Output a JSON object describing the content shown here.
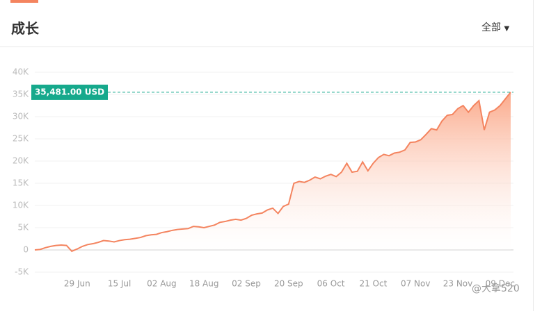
{
  "header": {
    "title": "成长",
    "filter": "全部"
  },
  "chart_data": {
    "type": "area",
    "color": "#f4845f",
    "categories": [
      null,
      null,
      null,
      null,
      null,
      null,
      null,
      null,
      "29 Jun",
      null,
      null,
      null,
      null,
      null,
      null,
      null,
      "15 Jul",
      null,
      null,
      null,
      null,
      null,
      null,
      null,
      "02 Aug",
      null,
      null,
      null,
      null,
      null,
      null,
      null,
      "18 Aug",
      null,
      null,
      null,
      null,
      null,
      null,
      null,
      "02 Sep",
      null,
      null,
      null,
      null,
      null,
      null,
      null,
      "20 Sep",
      null,
      null,
      null,
      null,
      null,
      null,
      null,
      "06 Oct",
      null,
      null,
      null,
      null,
      null,
      null,
      null,
      "21 Oct",
      null,
      null,
      null,
      null,
      null,
      null,
      null,
      "07 Nov",
      null,
      null,
      null,
      null,
      null,
      null,
      null,
      "23 Nov",
      null,
      null,
      null,
      null,
      null,
      null,
      null,
      "09 Dec",
      null,
      null
    ],
    "values": [
      0,
      100,
      500,
      800,
      1000,
      1100,
      1000,
      -300,
      200,
      800,
      1200,
      1400,
      1700,
      2100,
      2000,
      1800,
      2100,
      2300,
      2400,
      2600,
      2800,
      3200,
      3400,
      3500,
      3900,
      4100,
      4400,
      4600,
      4700,
      4800,
      5300,
      5200,
      5000,
      5300,
      5600,
      6200,
      6400,
      6700,
      6900,
      6700,
      7100,
      7800,
      8100,
      8300,
      9000,
      9400,
      8200,
      9800,
      10300,
      15000,
      15400,
      15200,
      15700,
      16400,
      16000,
      16600,
      17000,
      16500,
      17500,
      19500,
      17500,
      17700,
      19800,
      17800,
      19500,
      20800,
      21500,
      21200,
      21800,
      22000,
      22500,
      24200,
      24300,
      24800,
      26000,
      27300,
      27000,
      29000,
      30300,
      30500,
      31800,
      32500,
      31000,
      32500,
      33600,
      27000,
      31000,
      31500,
      32500,
      34000,
      35481
    ],
    "ylim": [
      -5000,
      40000
    ],
    "yticks": [
      {
        "value": -5000,
        "label": "-5K"
      },
      0,
      {
        "value": 5000,
        "label": "5K"
      },
      {
        "value": 10000,
        "label": "10K"
      },
      {
        "value": 15000,
        "label": "15K"
      },
      {
        "value": 20000,
        "label": "20K"
      },
      {
        "value": 25000,
        "label": "25K"
      },
      {
        "value": 30000,
        "label": "30K"
      },
      {
        "value": 35000,
        "label": "35K"
      },
      {
        "value": 40000,
        "label": "40K"
      }
    ],
    "grid": true,
    "marker": {
      "value": 35481,
      "label": "35,481.00 USD",
      "color": "#16a98c"
    }
  },
  "watermark": "@大拿520"
}
